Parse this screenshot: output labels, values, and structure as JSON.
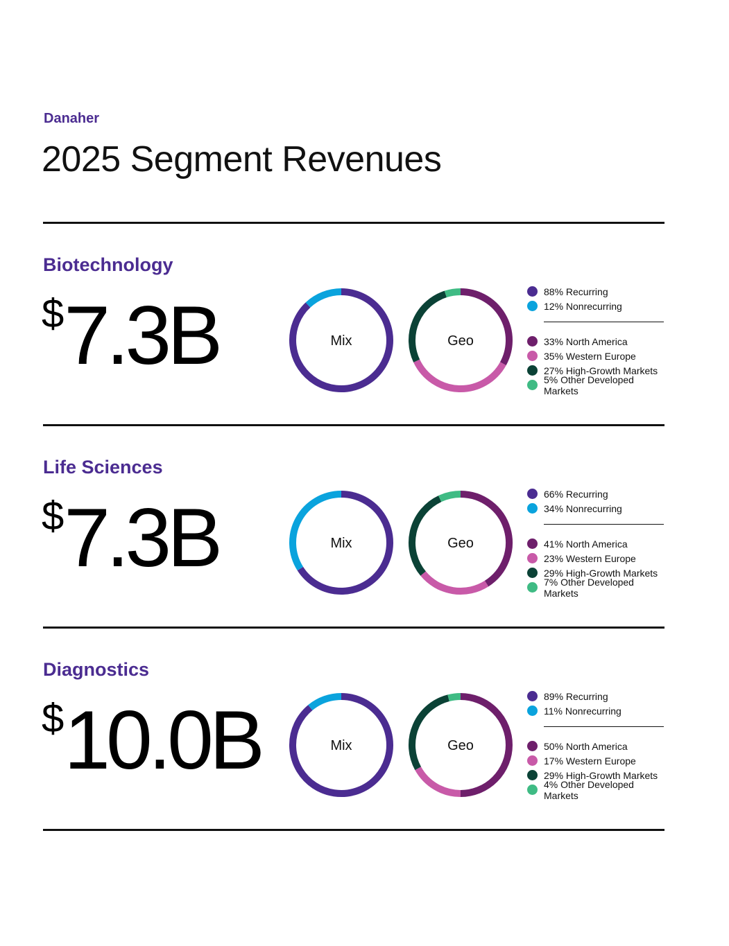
{
  "header": {
    "brand": "Danaher",
    "title": "2025 Segment Revenues"
  },
  "labels": {
    "currency": "$",
    "mix_center": "Mix",
    "geo_center": "Geo"
  },
  "colors": {
    "recurring": "#4b2c91",
    "nonrecurring": "#0aa3dd",
    "north_america": "#6e1f6b",
    "western_europe": "#c85aa8",
    "high_growth": "#0b4236",
    "other_developed": "#3fbb84"
  },
  "segments": [
    {
      "name": "Biotechnology",
      "revenue": "7.3B",
      "mix_legend": [
        "88% Recurring",
        "12% Nonrecurring"
      ],
      "geo_legend": [
        "33% North America",
        "35% Western Europe",
        "27% High-Growth Markets",
        "5% Other Developed Markets"
      ]
    },
    {
      "name": "Life Sciences",
      "revenue": "7.3B",
      "mix_legend": [
        "66% Recurring",
        "34% Nonrecurring"
      ],
      "geo_legend": [
        "41% North America",
        "23% Western Europe",
        "29% High-Growth Markets",
        "7% Other Developed Markets"
      ]
    },
    {
      "name": "Diagnostics",
      "revenue": "10.0B",
      "mix_legend": [
        "89% Recurring",
        "11% Nonrecurring"
      ],
      "geo_legend": [
        "50% North America",
        "17% Western Europe",
        "29% High-Growth Markets",
        "4% Other Developed Markets"
      ]
    }
  ],
  "chart_data": [
    {
      "type": "pie",
      "title": "Biotechnology Mix",
      "categories": [
        "Recurring",
        "Nonrecurring"
      ],
      "values": [
        88,
        12
      ],
      "units": "%"
    },
    {
      "type": "pie",
      "title": "Biotechnology Geo",
      "categories": [
        "North America",
        "Western Europe",
        "High-Growth Markets",
        "Other Developed Markets"
      ],
      "values": [
        33,
        35,
        27,
        5
      ],
      "units": "%"
    },
    {
      "type": "pie",
      "title": "Life Sciences Mix",
      "categories": [
        "Recurring",
        "Nonrecurring"
      ],
      "values": [
        66,
        34
      ],
      "units": "%"
    },
    {
      "type": "pie",
      "title": "Life Sciences Geo",
      "categories": [
        "North America",
        "Western Europe",
        "High-Growth Markets",
        "Other Developed Markets"
      ],
      "values": [
        41,
        23,
        29,
        7
      ],
      "units": "%"
    },
    {
      "type": "pie",
      "title": "Diagnostics Mix",
      "categories": [
        "Recurring",
        "Nonrecurring"
      ],
      "values": [
        89,
        11
      ],
      "units": "%"
    },
    {
      "type": "pie",
      "title": "Diagnostics Geo",
      "categories": [
        "North America",
        "Western Europe",
        "High-Growth Markets",
        "Other Developed Markets"
      ],
      "values": [
        50,
        17,
        29,
        4
      ],
      "units": "%"
    }
  ]
}
